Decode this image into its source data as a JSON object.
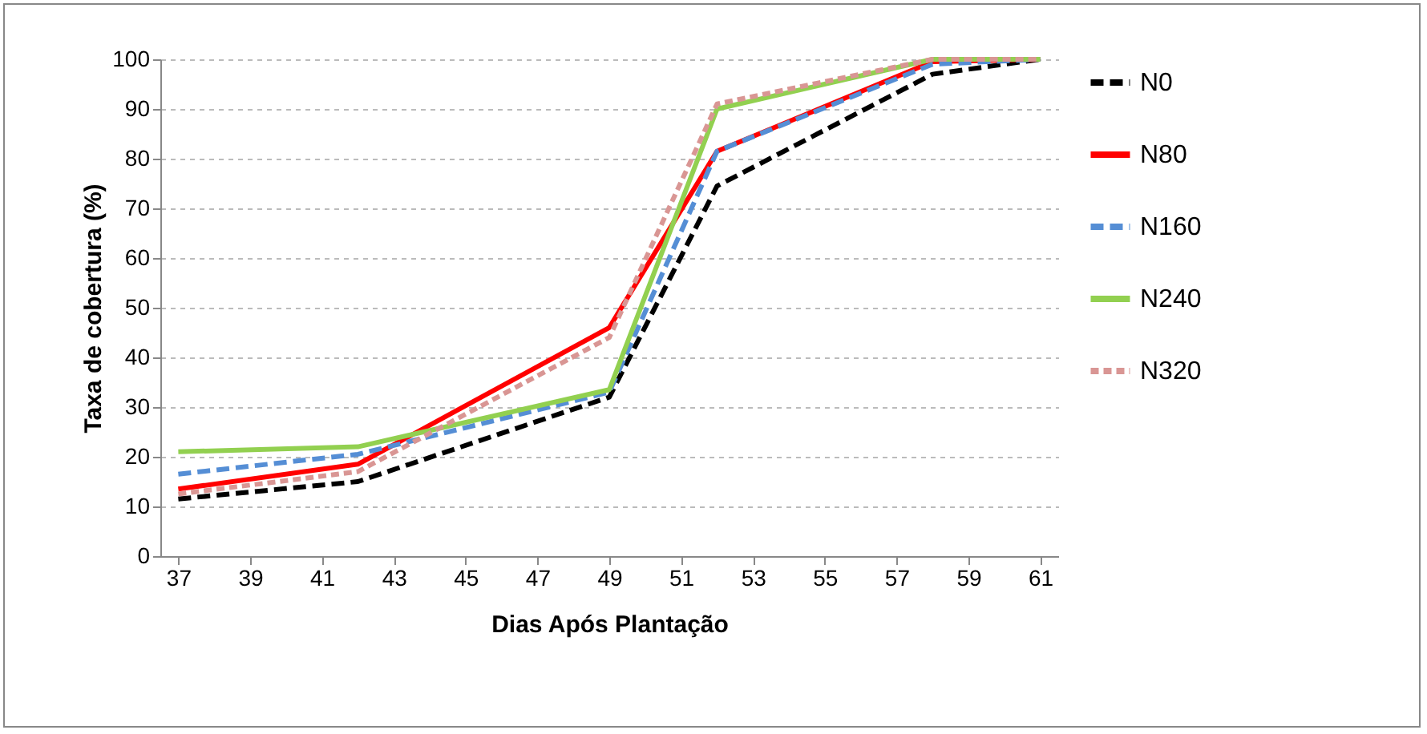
{
  "chart_data": {
    "type": "line",
    "xlabel": "Dias Após Plantação",
    "ylabel": "Taxa de cobertura (%)",
    "x": [
      37,
      42,
      49,
      52,
      58,
      61
    ],
    "series": [
      {
        "name": "N0",
        "color": "#000000",
        "line_style": "dashed",
        "values": [
          11.5,
          15,
          32,
          74.5,
          97,
          100
        ]
      },
      {
        "name": "N80",
        "color": "#ff0000",
        "line_style": "solid",
        "values": [
          13.5,
          18.5,
          46,
          81.5,
          99.5,
          100
        ]
      },
      {
        "name": "N160",
        "color": "#558ed5",
        "line_style": "dashed",
        "values": [
          16.5,
          20.5,
          33,
          81.5,
          99,
          100
        ]
      },
      {
        "name": "N240",
        "color": "#92d050",
        "line_style": "solid",
        "values": [
          21,
          22,
          33.5,
          90,
          100,
          100
        ]
      },
      {
        "name": "N320",
        "color": "#d99694",
        "line_style": "dotted",
        "values": [
          12.5,
          17,
          44,
          91,
          100,
          100
        ]
      }
    ],
    "xlim": [
      36.5,
      61.5
    ],
    "xticks": [
      37,
      39,
      41,
      43,
      45,
      47,
      49,
      51,
      53,
      55,
      57,
      59,
      61
    ],
    "ylim": [
      0,
      100
    ],
    "yticks": [
      0,
      10,
      20,
      30,
      40,
      50,
      60,
      70,
      80,
      90,
      100
    ],
    "grid": "y",
    "legend": "right",
    "marker": "none"
  }
}
